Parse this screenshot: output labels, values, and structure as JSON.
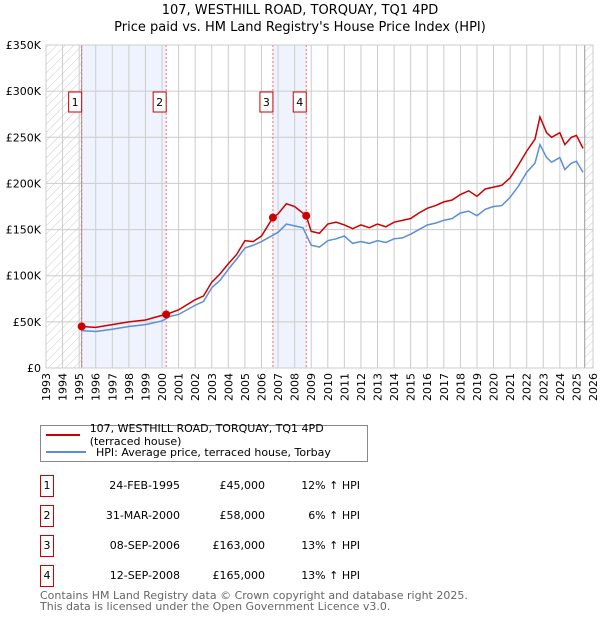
{
  "title": "107, WESTHILL ROAD, TORQUAY, TQ1 4PD",
  "subtitle": "Price paid vs. HM Land Registry's House Price Index (HPI)",
  "chart_data": {
    "type": "line",
    "title": "107, WESTHILL ROAD, TORQUAY, TQ1 4PD",
    "xlim": [
      1993,
      2026
    ],
    "ylim": [
      0,
      350000
    ],
    "y_ticks": [
      0,
      50000,
      100000,
      150000,
      200000,
      250000,
      300000,
      350000
    ],
    "y_tick_labels": [
      "£0",
      "£50K",
      "£100K",
      "£150K",
      "£200K",
      "£250K",
      "£300K",
      "£350K"
    ],
    "x_ticks": [
      "1993",
      "1994",
      "1995",
      "1996",
      "1997",
      "1998",
      "1999",
      "2000",
      "2001",
      "2002",
      "2003",
      "2004",
      "2005",
      "2006",
      "2007",
      "2008",
      "2009",
      "2010",
      "2011",
      "2012",
      "2013",
      "2014",
      "2015",
      "2016",
      "2017",
      "2018",
      "2019",
      "2020",
      "2021",
      "2022",
      "2023",
      "2024",
      "2025",
      "2026"
    ],
    "grid": true,
    "hatched_ranges": [
      [
        1993,
        1995.15
      ],
      [
        2025.5,
        2026
      ]
    ],
    "shaded_ranges": [
      [
        1995.15,
        2000.25
      ],
      [
        2006.69,
        2008.7
      ]
    ],
    "series": [
      {
        "name": "107, WESTHILL ROAD, TORQUAY, TQ1 4PD (terraced house)",
        "color": "#cc0000",
        "x": [
          1995.15,
          1996,
          1997,
          1998,
          1999,
          2000,
          2000.25,
          2001,
          2002,
          2002.5,
          2003,
          2003.5,
          2004,
          2004.5,
          2005,
          2005.5,
          2006,
          2006.69,
          2007,
          2007.5,
          2008,
          2008.7,
          2009,
          2009.5,
          2010,
          2010.5,
          2011,
          2011.5,
          2012,
          2012.5,
          2013,
          2013.5,
          2014,
          2014.5,
          2015,
          2015.5,
          2016,
          2016.5,
          2017,
          2017.5,
          2018,
          2018.5,
          2019,
          2019.5,
          2020,
          2020.5,
          2021,
          2021.5,
          2022,
          2022.5,
          2022.8,
          2023.2,
          2023.5,
          2024,
          2024.3,
          2024.7,
          2025,
          2025.4
        ],
        "y": [
          45000,
          44000,
          47000,
          50000,
          52000,
          57000,
          58000,
          63000,
          74000,
          78000,
          93000,
          102000,
          113000,
          123000,
          138000,
          137000,
          143000,
          163000,
          167000,
          178000,
          175000,
          165000,
          148000,
          146000,
          156000,
          158000,
          155000,
          151000,
          155000,
          152000,
          156000,
          153000,
          158000,
          160000,
          162000,
          168000,
          173000,
          176000,
          180000,
          182000,
          188000,
          192000,
          186000,
          194000,
          196000,
          198000,
          206000,
          220000,
          235000,
          248000,
          272000,
          255000,
          250000,
          255000,
          242000,
          250000,
          252000,
          238000
        ]
      },
      {
        "name": "HPI: Average price, terraced house, Torbay",
        "color": "#5b8fd4",
        "x": [
          1995.15,
          1996,
          1997,
          1998,
          1999,
          2000,
          2000.5,
          2001,
          2002,
          2002.5,
          2003,
          2003.5,
          2004,
          2004.5,
          2005,
          2005.5,
          2006,
          2006.5,
          2007,
          2007.5,
          2008,
          2008.5,
          2009,
          2009.5,
          2010,
          2010.5,
          2011,
          2011.5,
          2012,
          2012.5,
          2013,
          2013.5,
          2014,
          2014.5,
          2015,
          2015.5,
          2016,
          2016.5,
          2017,
          2017.5,
          2018,
          2018.5,
          2019,
          2019.5,
          2020,
          2020.5,
          2021,
          2021.5,
          2022,
          2022.5,
          2022.8,
          2023.2,
          2023.5,
          2024,
          2024.3,
          2024.7,
          2025,
          2025.4
        ],
        "y": [
          40500,
          39500,
          42000,
          45000,
          47000,
          51000,
          56000,
          58000,
          68000,
          72000,
          87000,
          95000,
          107000,
          118000,
          130000,
          133000,
          137000,
          142000,
          147000,
          156000,
          154000,
          152000,
          133000,
          131000,
          138000,
          140000,
          143000,
          135000,
          137000,
          135000,
          138000,
          136000,
          140000,
          141000,
          145000,
          150000,
          155000,
          157000,
          160000,
          162000,
          168000,
          170000,
          165000,
          172000,
          175000,
          176000,
          185000,
          197000,
          212000,
          222000,
          242000,
          228000,
          223000,
          228000,
          215000,
          222000,
          224000,
          212000
        ]
      }
    ],
    "sales": [
      {
        "id": "1",
        "x": 1995.15,
        "y": 45000
      },
      {
        "id": "2",
        "x": 2000.25,
        "y": 58000
      },
      {
        "id": "3",
        "x": 2006.69,
        "y": 163000
      },
      {
        "id": "4",
        "x": 2008.7,
        "y": 165000
      }
    ]
  },
  "legend": [
    {
      "label": "107, WESTHILL ROAD, TORQUAY, TQ1 4PD (terraced house)",
      "color": "#cc0000"
    },
    {
      "label": "HPI: Average price, terraced house, Torbay",
      "color": "#5b8fd4"
    }
  ],
  "table": [
    {
      "id": "1",
      "date": "24-FEB-1995",
      "price": "£45,000",
      "hpi": "12% ↑ HPI"
    },
    {
      "id": "2",
      "date": "31-MAR-2000",
      "price": "£58,000",
      "hpi": "6% ↑ HPI"
    },
    {
      "id": "3",
      "date": "08-SEP-2006",
      "price": "£163,000",
      "hpi": "13% ↑ HPI"
    },
    {
      "id": "4",
      "date": "12-SEP-2008",
      "price": "£165,000",
      "hpi": "13% ↑ HPI"
    }
  ],
  "footer": [
    "Contains HM Land Registry data © Crown copyright and database right 2025.",
    "This data is licensed under the Open Government Licence v3.0."
  ]
}
